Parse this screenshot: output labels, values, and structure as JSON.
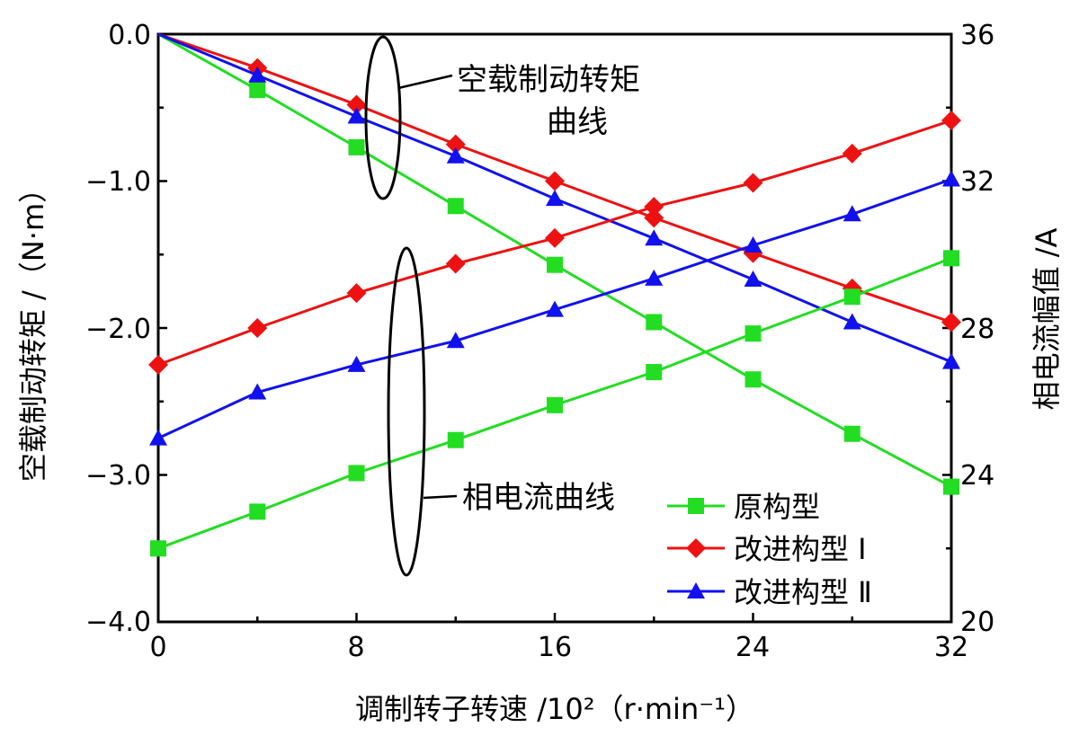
{
  "chart_data": {
    "type": "line",
    "xlabel": "调制转子转速 /10²（r·min⁻¹）",
    "ylabel_left": "空载制动转矩 /（N·m）",
    "ylabel_right": "相电流幅值 /A",
    "x": [
      0,
      4,
      8,
      12,
      16,
      20,
      24,
      28,
      32
    ],
    "xticks": [
      "0",
      "8",
      "16",
      "24",
      "32"
    ],
    "xlim": [
      0,
      32
    ],
    "ylim_left": [
      -4.0,
      0.0
    ],
    "yticks_left": [
      "0.0",
      "−1.0",
      "−2.0",
      "−3.0",
      "−4.0"
    ],
    "ylim_right": [
      20,
      36
    ],
    "yticks_right": [
      "36",
      "32",
      "28",
      "24",
      "20"
    ],
    "grid": false,
    "legend_position": "bottom-right",
    "annotations": {
      "torque_group_line1": "空载制动转矩",
      "torque_group_line2": "曲线",
      "current_group": "相电流曲线"
    },
    "series": [
      {
        "name": "原构型",
        "color": "#22dd22",
        "marker": "square",
        "axis": "left",
        "group": "torque",
        "values": [
          0.0,
          -0.38,
          -0.77,
          -1.17,
          -1.57,
          -1.96,
          -2.35,
          -2.72,
          -3.08
        ]
      },
      {
        "name": "改进构型 Ⅰ",
        "color": "#ee1111",
        "marker": "diamond",
        "axis": "left",
        "group": "torque",
        "values": [
          0.0,
          -0.23,
          -0.48,
          -0.75,
          -1.0,
          -1.25,
          -1.49,
          -1.73,
          -1.96
        ]
      },
      {
        "name": "改进构型 Ⅱ",
        "color": "#1111ee",
        "marker": "triangle",
        "axis": "left",
        "group": "torque",
        "values": [
          0.0,
          -0.28,
          -0.56,
          -0.83,
          -1.12,
          -1.39,
          -1.67,
          -1.96,
          -2.23
        ]
      },
      {
        "name": "原构型",
        "color": "#22dd22",
        "marker": "square",
        "axis": "right",
        "group": "current",
        "values": [
          22.0,
          23.0,
          24.05,
          24.95,
          25.9,
          26.8,
          27.85,
          28.85,
          29.9
        ]
      },
      {
        "name": "改进构型 Ⅰ",
        "color": "#ee1111",
        "marker": "diamond",
        "axis": "right",
        "group": "current",
        "values": [
          27.0,
          28.0,
          28.95,
          29.75,
          30.45,
          31.3,
          31.95,
          32.75,
          33.65
        ]
      },
      {
        "name": "改进构型 Ⅱ",
        "color": "#1111ee",
        "marker": "triangle",
        "axis": "right",
        "group": "current",
        "values": [
          25.0,
          26.25,
          27.0,
          27.65,
          28.5,
          29.35,
          30.25,
          31.1,
          32.05
        ]
      }
    ]
  }
}
